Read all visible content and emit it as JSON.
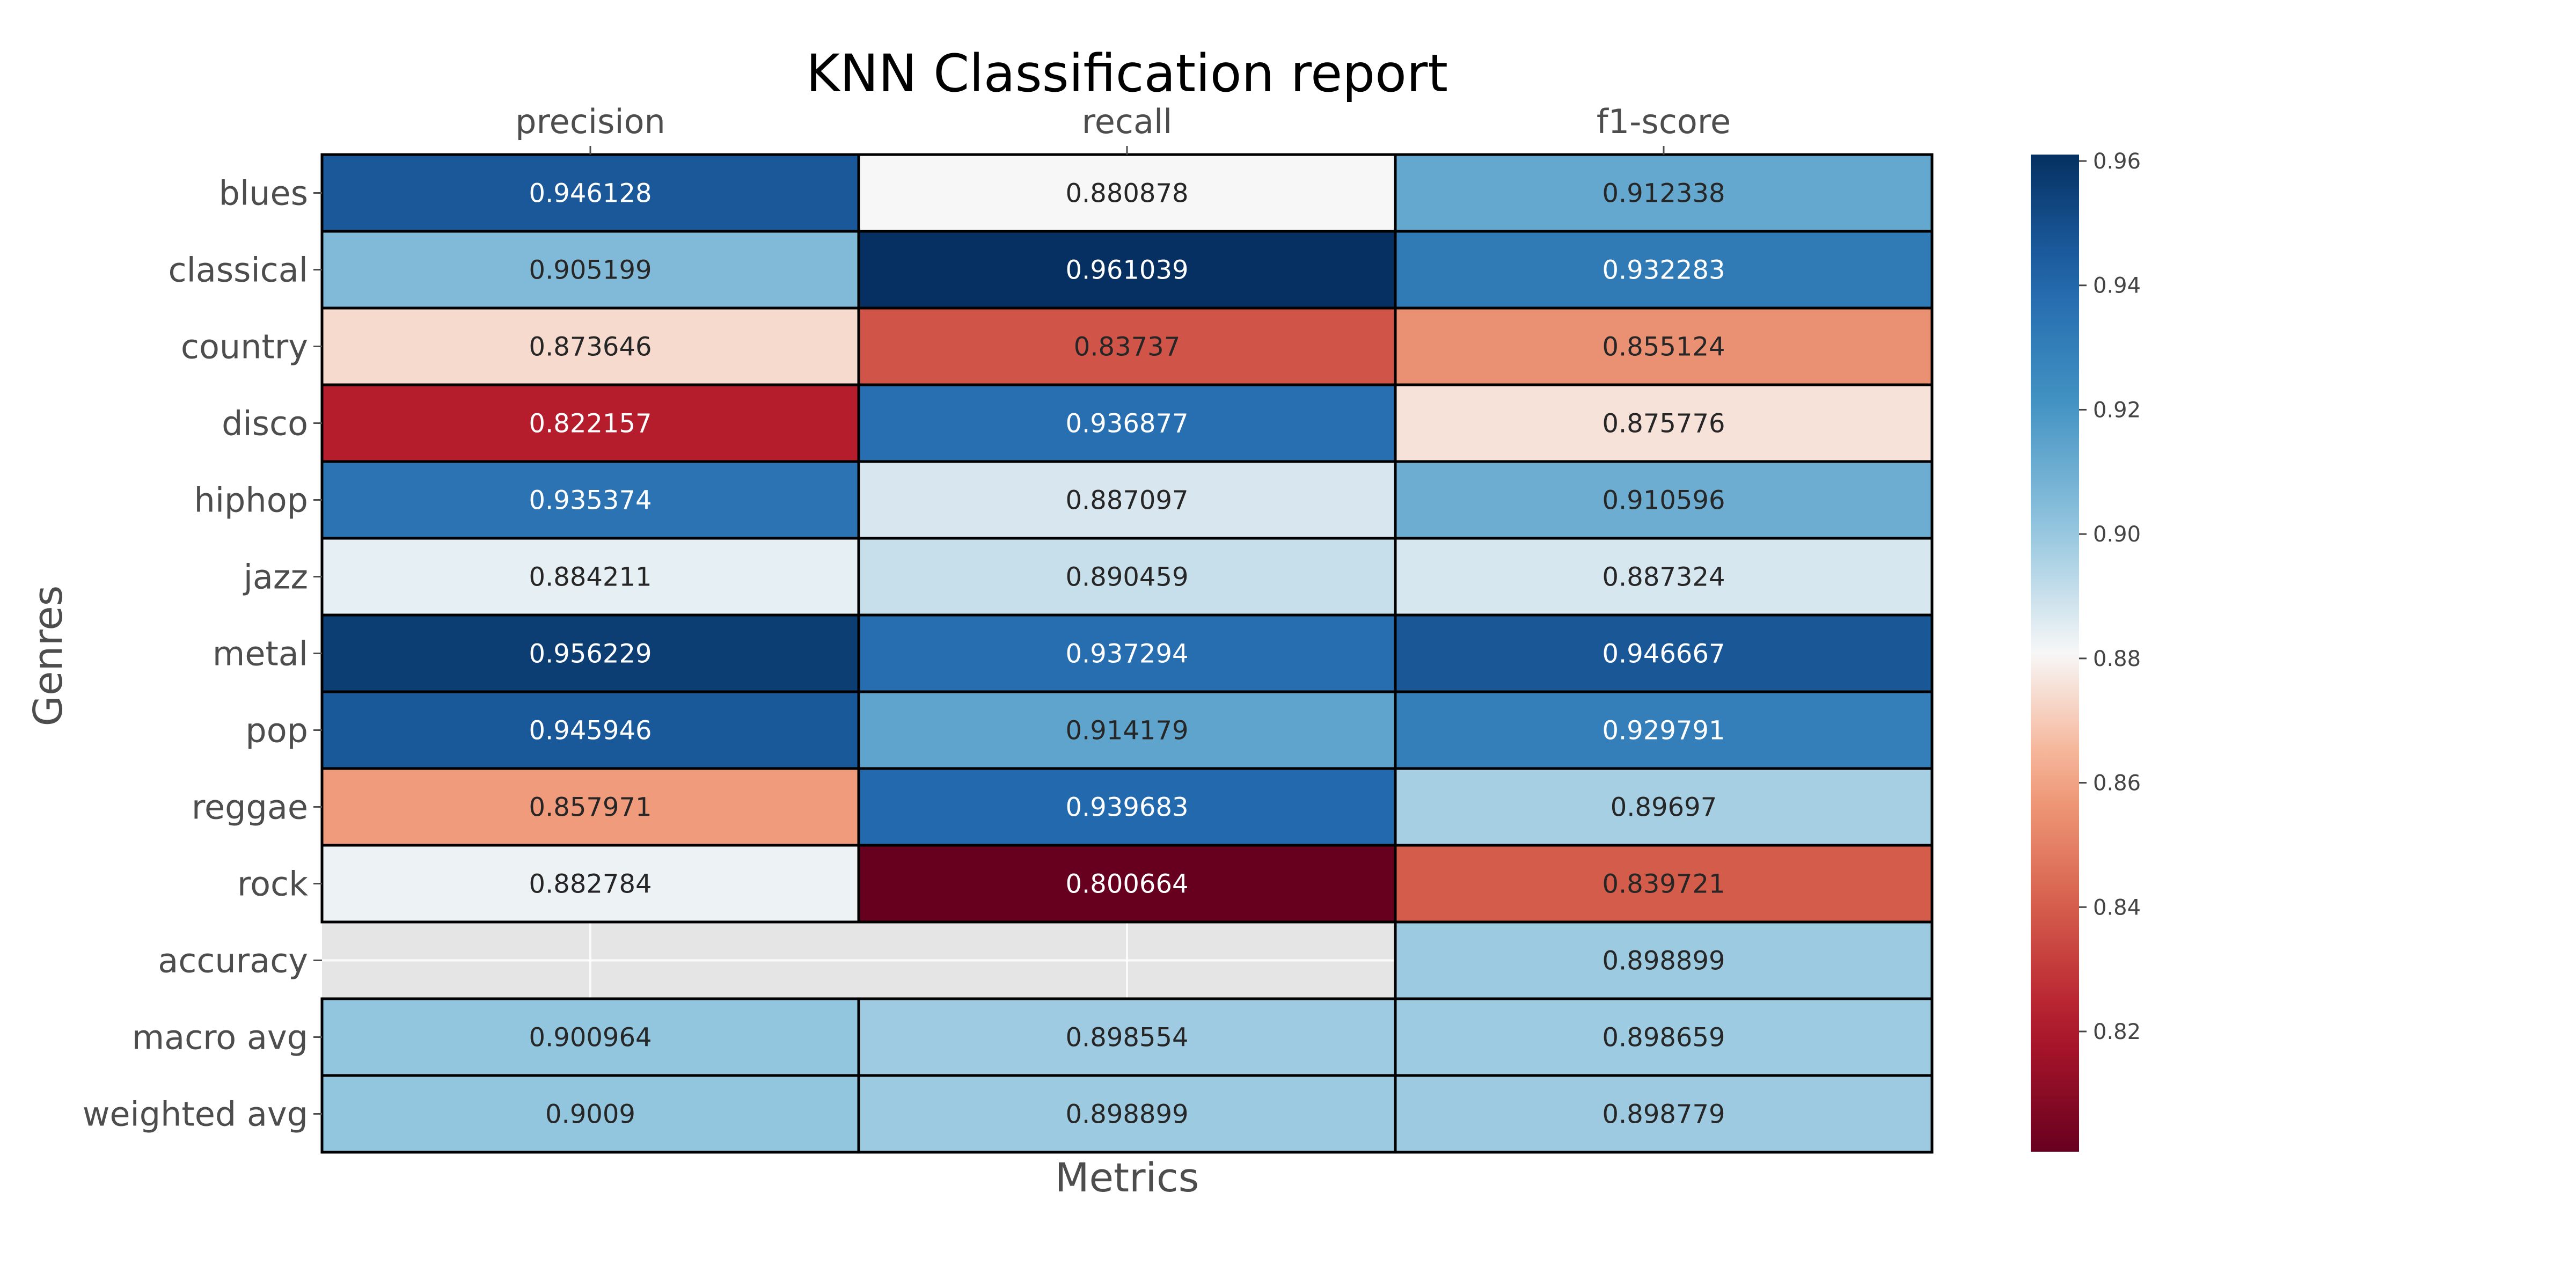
{
  "chart_data": {
    "type": "heatmap",
    "title": "KNN Classification report",
    "xlabel": "Metrics",
    "ylabel": "Genres",
    "x_tick_position": "top",
    "colormap": "RdBu",
    "color_range": [
      0.800664,
      0.961039
    ],
    "columns": [
      "precision",
      "recall",
      "f1-score"
    ],
    "rows": [
      "blues",
      "classical",
      "country",
      "disco",
      "hiphop",
      "jazz",
      "metal",
      "pop",
      "reggae",
      "rock",
      "accuracy",
      "macro avg",
      "weighted avg"
    ],
    "values": [
      [
        0.946128,
        0.880878,
        0.912338
      ],
      [
        0.905199,
        0.961039,
        0.932283
      ],
      [
        0.873646,
        0.83737,
        0.855124
      ],
      [
        0.822157,
        0.936877,
        0.875776
      ],
      [
        0.935374,
        0.887097,
        0.910596
      ],
      [
        0.884211,
        0.890459,
        0.887324
      ],
      [
        0.956229,
        0.937294,
        0.946667
      ],
      [
        0.945946,
        0.914179,
        0.929791
      ],
      [
        0.857971,
        0.939683,
        0.89697
      ],
      [
        0.882784,
        0.800664,
        0.839721
      ],
      [
        null,
        null,
        0.898899
      ],
      [
        0.900964,
        0.898554,
        0.898659
      ],
      [
        0.9009,
        0.898899,
        0.898779
      ]
    ],
    "labels": [
      [
        "0.946128",
        "0.880878",
        "0.912338"
      ],
      [
        "0.905199",
        "0.961039",
        "0.932283"
      ],
      [
        "0.873646",
        "0.83737",
        "0.855124"
      ],
      [
        "0.822157",
        "0.936877",
        "0.875776"
      ],
      [
        "0.935374",
        "0.887097",
        "0.910596"
      ],
      [
        "0.884211",
        "0.890459",
        "0.887324"
      ],
      [
        "0.956229",
        "0.937294",
        "0.946667"
      ],
      [
        "0.945946",
        "0.914179",
        "0.929791"
      ],
      [
        "0.857971",
        "0.939683",
        "0.89697"
      ],
      [
        "0.882784",
        "0.800664",
        "0.839721"
      ],
      [
        "",
        "",
        "0.898899"
      ],
      [
        "0.900964",
        "0.898554",
        "0.898659"
      ],
      [
        "0.9009",
        "0.898899",
        "0.898779"
      ]
    ],
    "colorbar": {
      "ticks": [
        0.96,
        0.94,
        0.92,
        0.9,
        0.88,
        0.86,
        0.84,
        0.82
      ],
      "tick_labels": [
        "0.96",
        "0.94",
        "0.92",
        "0.90",
        "0.88",
        "0.86",
        "0.84",
        "0.82"
      ]
    },
    "missing_color": "#e5e5e5",
    "grid": true,
    "cell_border_color": "#000000"
  }
}
